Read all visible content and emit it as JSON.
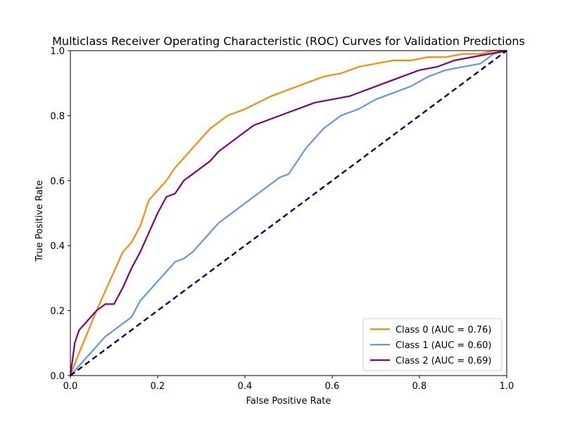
{
  "chart_data": {
    "type": "line",
    "title": "Multiclass Receiver Operating Characteristic (ROC) Curves for Validation Predictions",
    "xlabel": "False Positive Rate",
    "ylabel": "True Positive Rate",
    "xlim": [
      0.0,
      1.0
    ],
    "ylim": [
      0.0,
      1.0
    ],
    "xticks": [
      "0.0",
      "0.2",
      "0.4",
      "0.6",
      "0.8",
      "1.0"
    ],
    "yticks": [
      "0.0",
      "0.2",
      "0.4",
      "0.6",
      "0.8",
      "1.0"
    ],
    "grid": false,
    "legend_position": "lower-right",
    "series": [
      {
        "name": "Class 0 (AUC = 0.76)",
        "color": "#ff8c00",
        "style": "solid",
        "x": [
          0.0,
          0.02,
          0.06,
          0.1,
          0.12,
          0.14,
          0.16,
          0.17,
          0.18,
          0.2,
          0.22,
          0.24,
          0.26,
          0.28,
          0.3,
          0.32,
          0.34,
          0.36,
          0.38,
          0.4,
          0.43,
          0.46,
          0.5,
          0.54,
          0.58,
          0.62,
          0.66,
          0.7,
          0.74,
          0.78,
          0.82,
          0.86,
          0.9,
          0.94,
          0.97,
          1.0
        ],
        "y": [
          0.0,
          0.07,
          0.2,
          0.32,
          0.38,
          0.41,
          0.46,
          0.5,
          0.54,
          0.57,
          0.6,
          0.64,
          0.67,
          0.7,
          0.73,
          0.76,
          0.78,
          0.8,
          0.81,
          0.82,
          0.84,
          0.86,
          0.88,
          0.9,
          0.92,
          0.93,
          0.95,
          0.96,
          0.97,
          0.97,
          0.98,
          0.98,
          0.99,
          0.99,
          1.0,
          1.0
        ]
      },
      {
        "name": "Class 1 (AUC = 0.60)",
        "color": "#6495ed",
        "style": "solid",
        "x": [
          0.0,
          0.02,
          0.04,
          0.06,
          0.08,
          0.1,
          0.12,
          0.14,
          0.16,
          0.18,
          0.2,
          0.22,
          0.24,
          0.26,
          0.28,
          0.3,
          0.32,
          0.34,
          0.36,
          0.38,
          0.4,
          0.42,
          0.44,
          0.46,
          0.48,
          0.5,
          0.52,
          0.54,
          0.56,
          0.58,
          0.6,
          0.62,
          0.66,
          0.7,
          0.74,
          0.78,
          0.82,
          0.86,
          0.9,
          0.94,
          0.97,
          1.0
        ],
        "y": [
          0.0,
          0.03,
          0.06,
          0.09,
          0.12,
          0.14,
          0.16,
          0.18,
          0.23,
          0.26,
          0.29,
          0.32,
          0.35,
          0.36,
          0.38,
          0.41,
          0.44,
          0.47,
          0.49,
          0.51,
          0.53,
          0.55,
          0.57,
          0.59,
          0.61,
          0.62,
          0.66,
          0.7,
          0.73,
          0.76,
          0.78,
          0.8,
          0.82,
          0.85,
          0.87,
          0.89,
          0.92,
          0.94,
          0.95,
          0.96,
          0.99,
          1.0
        ]
      },
      {
        "name": "Class 2 (AUC = 0.69)",
        "color": "#800080",
        "style": "solid",
        "x": [
          0.0,
          0.01,
          0.02,
          0.04,
          0.06,
          0.08,
          0.1,
          0.12,
          0.14,
          0.16,
          0.18,
          0.2,
          0.22,
          0.24,
          0.26,
          0.28,
          0.3,
          0.32,
          0.34,
          0.36,
          0.38,
          0.4,
          0.42,
          0.44,
          0.46,
          0.48,
          0.5,
          0.52,
          0.56,
          0.6,
          0.64,
          0.68,
          0.72,
          0.76,
          0.8,
          0.84,
          0.88,
          0.92,
          0.96,
          1.0
        ],
        "y": [
          0.0,
          0.1,
          0.14,
          0.17,
          0.2,
          0.22,
          0.22,
          0.27,
          0.33,
          0.38,
          0.44,
          0.5,
          0.55,
          0.56,
          0.6,
          0.62,
          0.64,
          0.66,
          0.69,
          0.71,
          0.73,
          0.75,
          0.77,
          0.78,
          0.79,
          0.8,
          0.81,
          0.82,
          0.84,
          0.85,
          0.86,
          0.88,
          0.9,
          0.92,
          0.94,
          0.95,
          0.97,
          0.98,
          0.99,
          1.0
        ]
      },
      {
        "name": "",
        "color": "#000080",
        "style": "dashed",
        "x": [
          0.0,
          1.0
        ],
        "y": [
          0.0,
          1.0
        ]
      }
    ]
  }
}
